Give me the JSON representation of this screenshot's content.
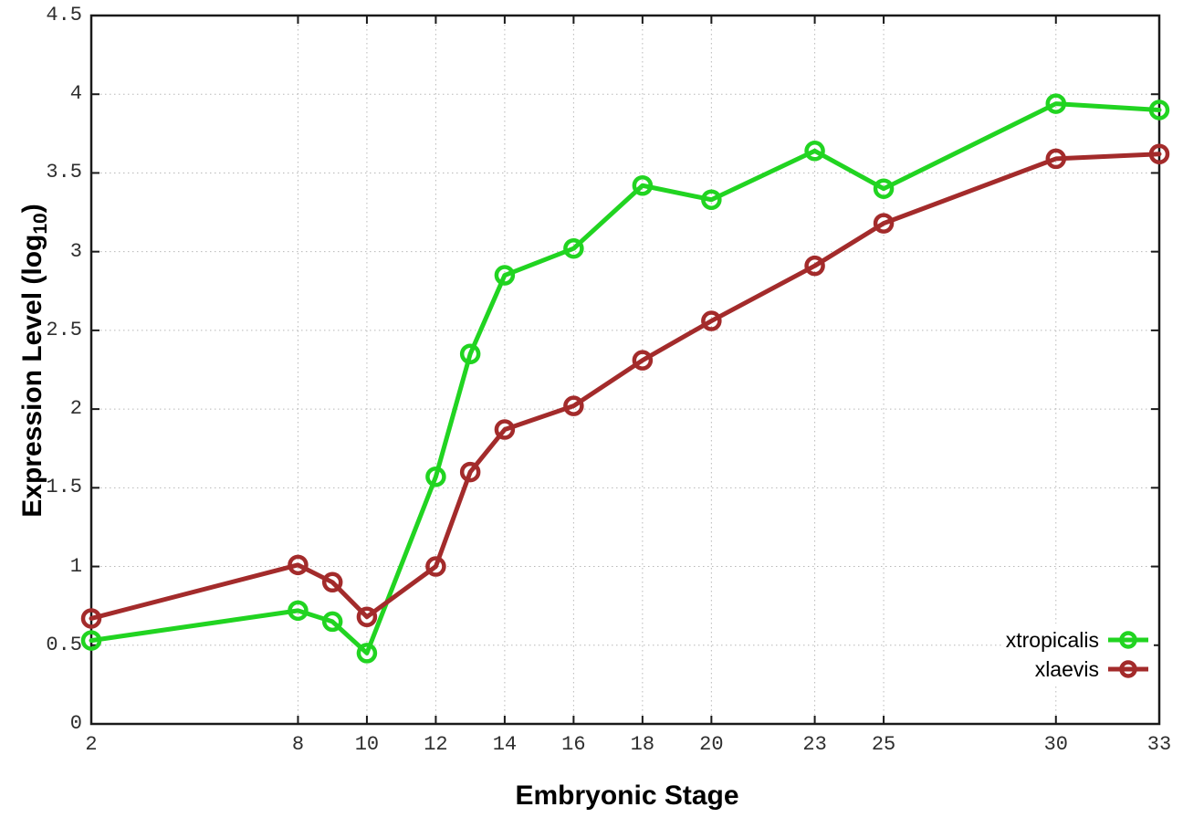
{
  "chart_data": {
    "type": "line",
    "title": "",
    "xlabel": "Embryonic Stage",
    "ylabel_prefix": "Expression Level (log",
    "ylabel_sub": "10",
    "ylabel_suffix": ")",
    "xlim": [
      2,
      33
    ],
    "ylim": [
      0,
      4.5
    ],
    "grid": true,
    "legend_position": "bottom-right",
    "x": [
      2,
      8,
      9,
      10,
      12,
      13,
      14,
      16,
      18,
      20,
      23,
      25,
      30,
      33
    ],
    "xticks": [
      2,
      8,
      10,
      12,
      14,
      16,
      18,
      20,
      23,
      25,
      30,
      33
    ],
    "xtick_labels": [
      "2",
      "8",
      "10",
      "12",
      "14",
      "16",
      "18",
      "20",
      "23",
      "25",
      "30",
      "33"
    ],
    "yticks": [
      0,
      0.5,
      1,
      1.5,
      2,
      2.5,
      3,
      3.5,
      4,
      4.5
    ],
    "ytick_labels": [
      "0",
      "0.5",
      "1",
      "1.5",
      "2",
      "2.5",
      "3",
      "3.5",
      "4",
      "4.5"
    ],
    "series": [
      {
        "name": "xtropicalis",
        "color": "#21d421",
        "values": [
          0.53,
          0.72,
          0.65,
          0.45,
          1.57,
          2.35,
          2.85,
          3.02,
          3.42,
          3.33,
          3.64,
          3.4,
          3.94,
          3.9
        ]
      },
      {
        "name": "xlaevis",
        "color": "#a32b2b",
        "values": [
          0.67,
          1.01,
          0.9,
          0.68,
          1.0,
          1.6,
          1.87,
          2.02,
          2.31,
          2.56,
          2.91,
          3.18,
          3.59,
          3.62
        ]
      }
    ]
  }
}
